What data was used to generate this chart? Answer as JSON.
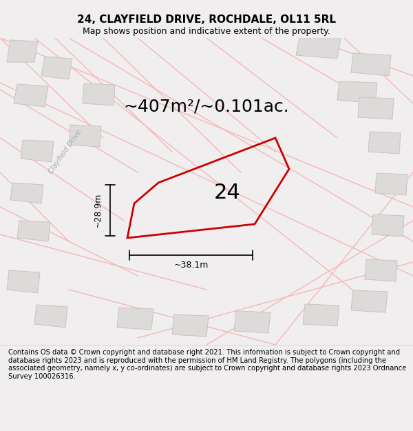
{
  "title_line1": "24, CLAYFIELD DRIVE, ROCHDALE, OL11 5RL",
  "title_line2": "Map shows position and indicative extent of the property.",
  "area_text": "~407m²/~0.101ac.",
  "plot_number": "24",
  "dim_width": "~38.1m",
  "dim_height": "~28.9m",
  "footer_text": "Contains OS data © Crown copyright and database right 2021. This information is subject to Crown copyright and database rights 2023 and is reproduced with the permission of HM Land Registry. The polygons (including the associated geometry, namely x, y co-ordinates) are subject to Crown copyright and database rights 2023 Ordnance Survey 100026316.",
  "bg_color": "#f0eeee",
  "map_bg": "#f7f5f5",
  "road_color": "#f4b8b8",
  "building_color": "#dddada",
  "building_edge": "#c8c4c4",
  "plot_color": "#cc0000",
  "plot_fill": "none",
  "road_label": "Clayfield Drive",
  "title_fontsize": 11,
  "subtitle_fontsize": 9,
  "footer_fontsize": 7.2,
  "area_fontsize": 18,
  "number_fontsize": 22,
  "dim_fontsize": 9
}
